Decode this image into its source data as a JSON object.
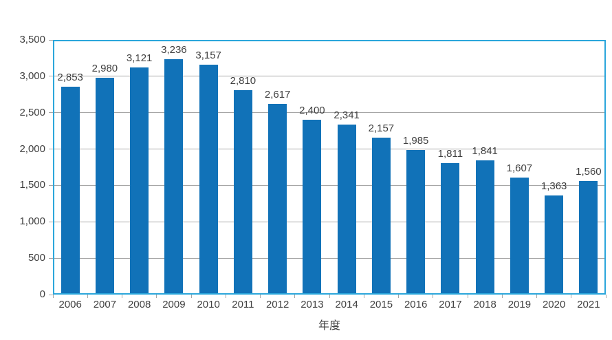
{
  "chart_data": {
    "type": "bar",
    "title": "",
    "categories": [
      "2006",
      "2007",
      "2008",
      "2009",
      "2010",
      "2011",
      "2012",
      "2013",
      "2014",
      "2015",
      "2016",
      "2017",
      "2018",
      "2019",
      "2020",
      "2021"
    ],
    "values": [
      2853,
      2980,
      3121,
      3236,
      3157,
      2810,
      2617,
      2400,
      2341,
      2157,
      1985,
      1811,
      1841,
      1607,
      1363,
      1560
    ],
    "value_labels": [
      "2,853",
      "2,980",
      "3,121",
      "3,236",
      "3,157",
      "2,810",
      "2,617",
      "2,400",
      "2,341",
      "2,157",
      "1,985",
      "1,811",
      "1,841",
      "1,607",
      "1,363",
      "1,560"
    ],
    "xlabel": "年度",
    "ylabel": "",
    "ylim": [
      0,
      3500
    ],
    "ytick_interval": 500,
    "ytick_labels": [
      "0",
      "500",
      "1,000",
      "1,500",
      "2,000",
      "2,500",
      "3,000",
      "3,500"
    ],
    "grid": true,
    "legend": false,
    "colors": {
      "bar": "#1172B8",
      "plot_border": "#2BA6DB",
      "gridline": "#A6A6A6",
      "tick": "#A6A6A6",
      "text": "#404040",
      "background": "#FFFFFF"
    }
  }
}
